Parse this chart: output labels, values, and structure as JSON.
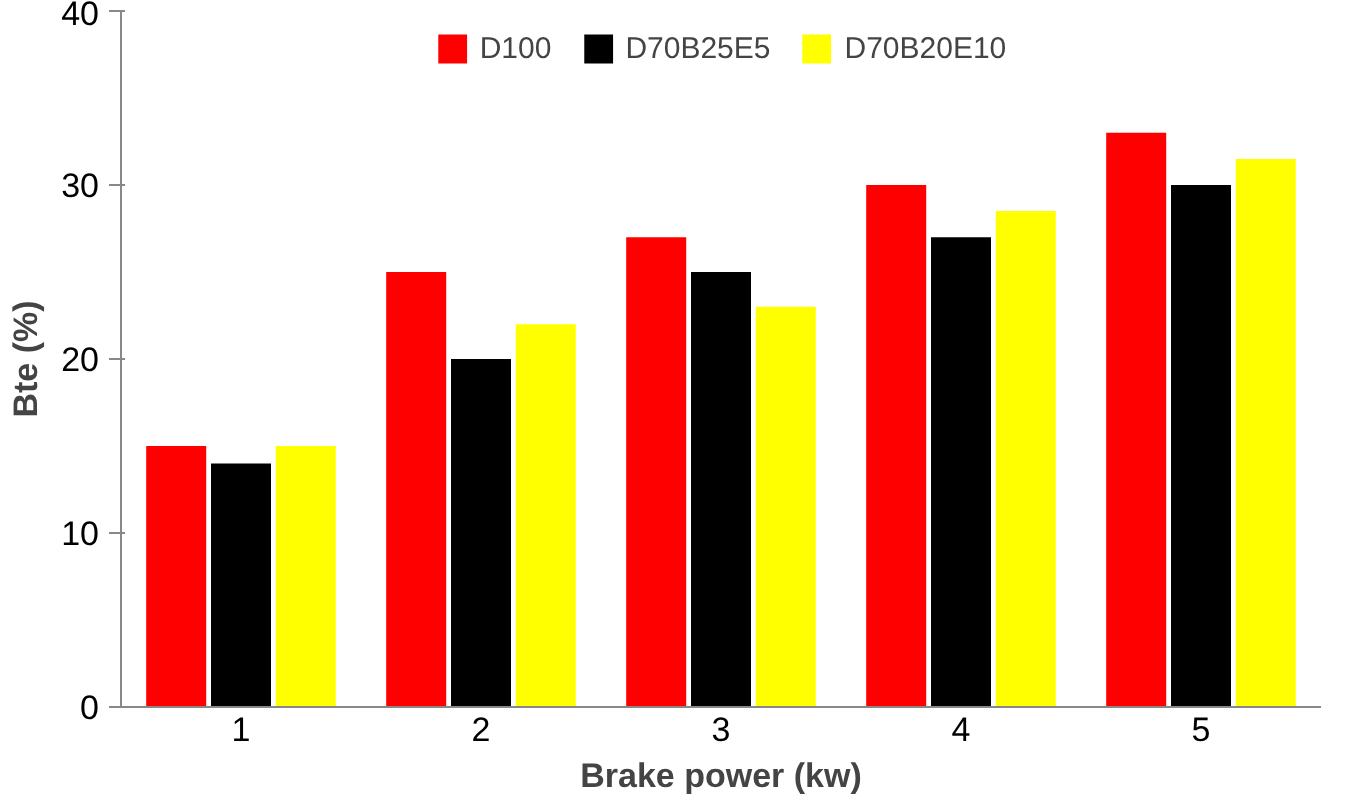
{
  "chart_data": {
    "type": "bar",
    "xlabel": "Brake power (kw)",
    "ylabel": "Bte (%)",
    "categories": [
      "1",
      "2",
      "3",
      "4",
      "5"
    ],
    "series": [
      {
        "name": "D100",
        "color": "#ff0000",
        "values": [
          15,
          25,
          27,
          30,
          33
        ]
      },
      {
        "name": "D70B25E5",
        "color": "#000000",
        "values": [
          14,
          20,
          25,
          27,
          30
        ]
      },
      {
        "name": "D70B20E10",
        "color": "#ffff00",
        "values": [
          15,
          22,
          23,
          28.5,
          31.5
        ]
      }
    ],
    "ylim": [
      0,
      40
    ],
    "yticks": [
      0,
      10,
      20,
      30,
      40
    ],
    "grid": false,
    "legend": "top"
  }
}
